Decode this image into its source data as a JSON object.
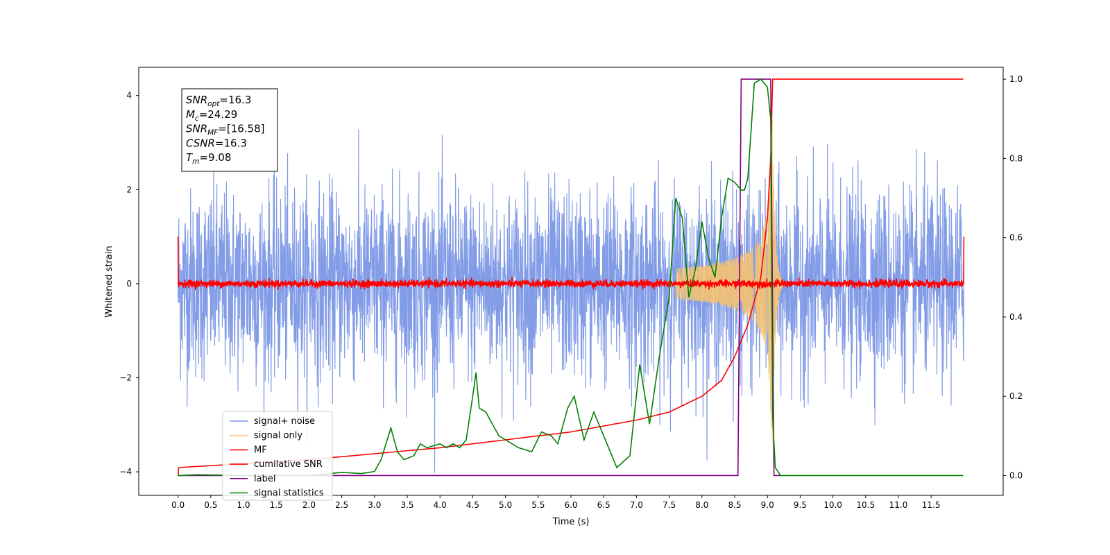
{
  "chart_data": {
    "type": "line",
    "xlabel": "Time (s)",
    "ylabel": "Whitened strain",
    "xlim": [
      -0.6,
      12.6
    ],
    "ylim": [
      -4.5,
      4.6
    ],
    "y2lim": [
      -0.05,
      1.03
    ],
    "x_ticks": [
      "0.0",
      "0.5",
      "1.0",
      "1.5",
      "2.0",
      "2.5",
      "3.0",
      "3.5",
      "4.0",
      "4.5",
      "5.0",
      "5.5",
      "6.0",
      "6.5",
      "7.0",
      "7.5",
      "8.0",
      "8.5",
      "9.0",
      "9.5",
      "10.0",
      "10.5",
      "11.0",
      "11.5"
    ],
    "y_ticks": [
      "−4",
      "−2",
      "0",
      "2",
      "4"
    ],
    "y2_ticks": [
      "0.0",
      "0.2",
      "0.4",
      "0.6",
      "0.8",
      "1.0"
    ],
    "annotation": {
      "lines": [
        {
          "sym": "SNR",
          "sub": "opt",
          "value": "=16.3"
        },
        {
          "sym": "M",
          "sub": "c",
          "value": "=24.29"
        },
        {
          "sym": "SNR",
          "sub": "MF",
          "value": "=[16.58]"
        },
        {
          "sym": "CSNR",
          "sub": "",
          "value": "=16.3"
        },
        {
          "sym": "T",
          "sub": "m",
          "value": "=9.08"
        }
      ]
    },
    "legend_position": "lower-left",
    "series": [
      {
        "name": "signal+ noise",
        "color": "#7794e5",
        "axis": "left",
        "kind": "noise",
        "sigma": 1.0,
        "x_range": [
          0,
          12
        ]
      },
      {
        "name": "signal only",
        "color": "#f5c372",
        "axis": "left",
        "kind": "chirp",
        "merger_time": 9.08,
        "peak_amplitude": 3.5
      },
      {
        "name": "MF",
        "color": "#ff0000",
        "axis": "left",
        "kind": "noise",
        "sigma": 0.04
      },
      {
        "name": "cumilative SNR",
        "color": "#ff0000",
        "axis": "right",
        "points": [
          [
            0.0,
            0.0
          ],
          [
            0.01,
            0.02
          ],
          [
            1.0,
            0.03
          ],
          [
            2.0,
            0.04
          ],
          [
            3.0,
            0.055
          ],
          [
            4.0,
            0.07
          ],
          [
            5.0,
            0.09
          ],
          [
            6.0,
            0.11
          ],
          [
            7.0,
            0.14
          ],
          [
            7.5,
            0.16
          ],
          [
            8.0,
            0.2
          ],
          [
            8.3,
            0.24
          ],
          [
            8.5,
            0.3
          ],
          [
            8.7,
            0.38
          ],
          [
            8.9,
            0.5
          ],
          [
            9.0,
            0.65
          ],
          [
            9.05,
            0.8
          ],
          [
            9.08,
            1.0
          ],
          [
            11.99,
            1.0
          ]
        ]
      },
      {
        "name": "label",
        "color": "#800080",
        "axis": "right",
        "points": [
          [
            0.0,
            0.0
          ],
          [
            8.55,
            0.0
          ],
          [
            8.6,
            1.0
          ],
          [
            9.05,
            1.0
          ],
          [
            9.1,
            0.0
          ],
          [
            9.2,
            0.0
          ]
        ]
      },
      {
        "name": "signal statistics",
        "color": "#008000",
        "axis": "right",
        "points": [
          [
            0.0,
            0.0
          ],
          [
            0.3,
            0.002
          ],
          [
            1.0,
            0.0
          ],
          [
            2.0,
            0.0
          ],
          [
            2.5,
            0.008
          ],
          [
            2.8,
            0.005
          ],
          [
            3.0,
            0.01
          ],
          [
            3.1,
            0.04
          ],
          [
            3.25,
            0.12
          ],
          [
            3.35,
            0.06
          ],
          [
            3.45,
            0.04
          ],
          [
            3.6,
            0.05
          ],
          [
            3.7,
            0.08
          ],
          [
            3.8,
            0.07
          ],
          [
            4.0,
            0.08
          ],
          [
            4.1,
            0.07
          ],
          [
            4.2,
            0.08
          ],
          [
            4.3,
            0.07
          ],
          [
            4.4,
            0.09
          ],
          [
            4.5,
            0.2
          ],
          [
            4.55,
            0.26
          ],
          [
            4.6,
            0.17
          ],
          [
            4.7,
            0.16
          ],
          [
            4.8,
            0.13
          ],
          [
            4.9,
            0.1
          ],
          [
            5.0,
            0.09
          ],
          [
            5.2,
            0.07
          ],
          [
            5.4,
            0.06
          ],
          [
            5.55,
            0.11
          ],
          [
            5.7,
            0.1
          ],
          [
            5.8,
            0.08
          ],
          [
            5.95,
            0.17
          ],
          [
            6.05,
            0.2
          ],
          [
            6.2,
            0.09
          ],
          [
            6.35,
            0.16
          ],
          [
            6.5,
            0.1
          ],
          [
            6.7,
            0.02
          ],
          [
            6.9,
            0.05
          ],
          [
            7.05,
            0.28
          ],
          [
            7.2,
            0.13
          ],
          [
            7.35,
            0.3
          ],
          [
            7.5,
            0.45
          ],
          [
            7.6,
            0.7
          ],
          [
            7.7,
            0.65
          ],
          [
            7.8,
            0.45
          ],
          [
            7.9,
            0.52
          ],
          [
            8.0,
            0.64
          ],
          [
            8.1,
            0.55
          ],
          [
            8.2,
            0.5
          ],
          [
            8.3,
            0.65
          ],
          [
            8.4,
            0.75
          ],
          [
            8.5,
            0.74
          ],
          [
            8.6,
            0.72
          ],
          [
            8.65,
            0.72
          ],
          [
            8.7,
            0.75
          ],
          [
            8.8,
            0.99
          ],
          [
            8.9,
            1.0
          ],
          [
            9.0,
            0.98
          ],
          [
            9.05,
            0.9
          ],
          [
            9.08,
            0.15
          ],
          [
            9.12,
            0.02
          ],
          [
            9.2,
            0.0
          ],
          [
            10.0,
            0.0
          ],
          [
            11.0,
            0.0
          ],
          [
            11.99,
            0.0
          ]
        ]
      }
    ]
  }
}
